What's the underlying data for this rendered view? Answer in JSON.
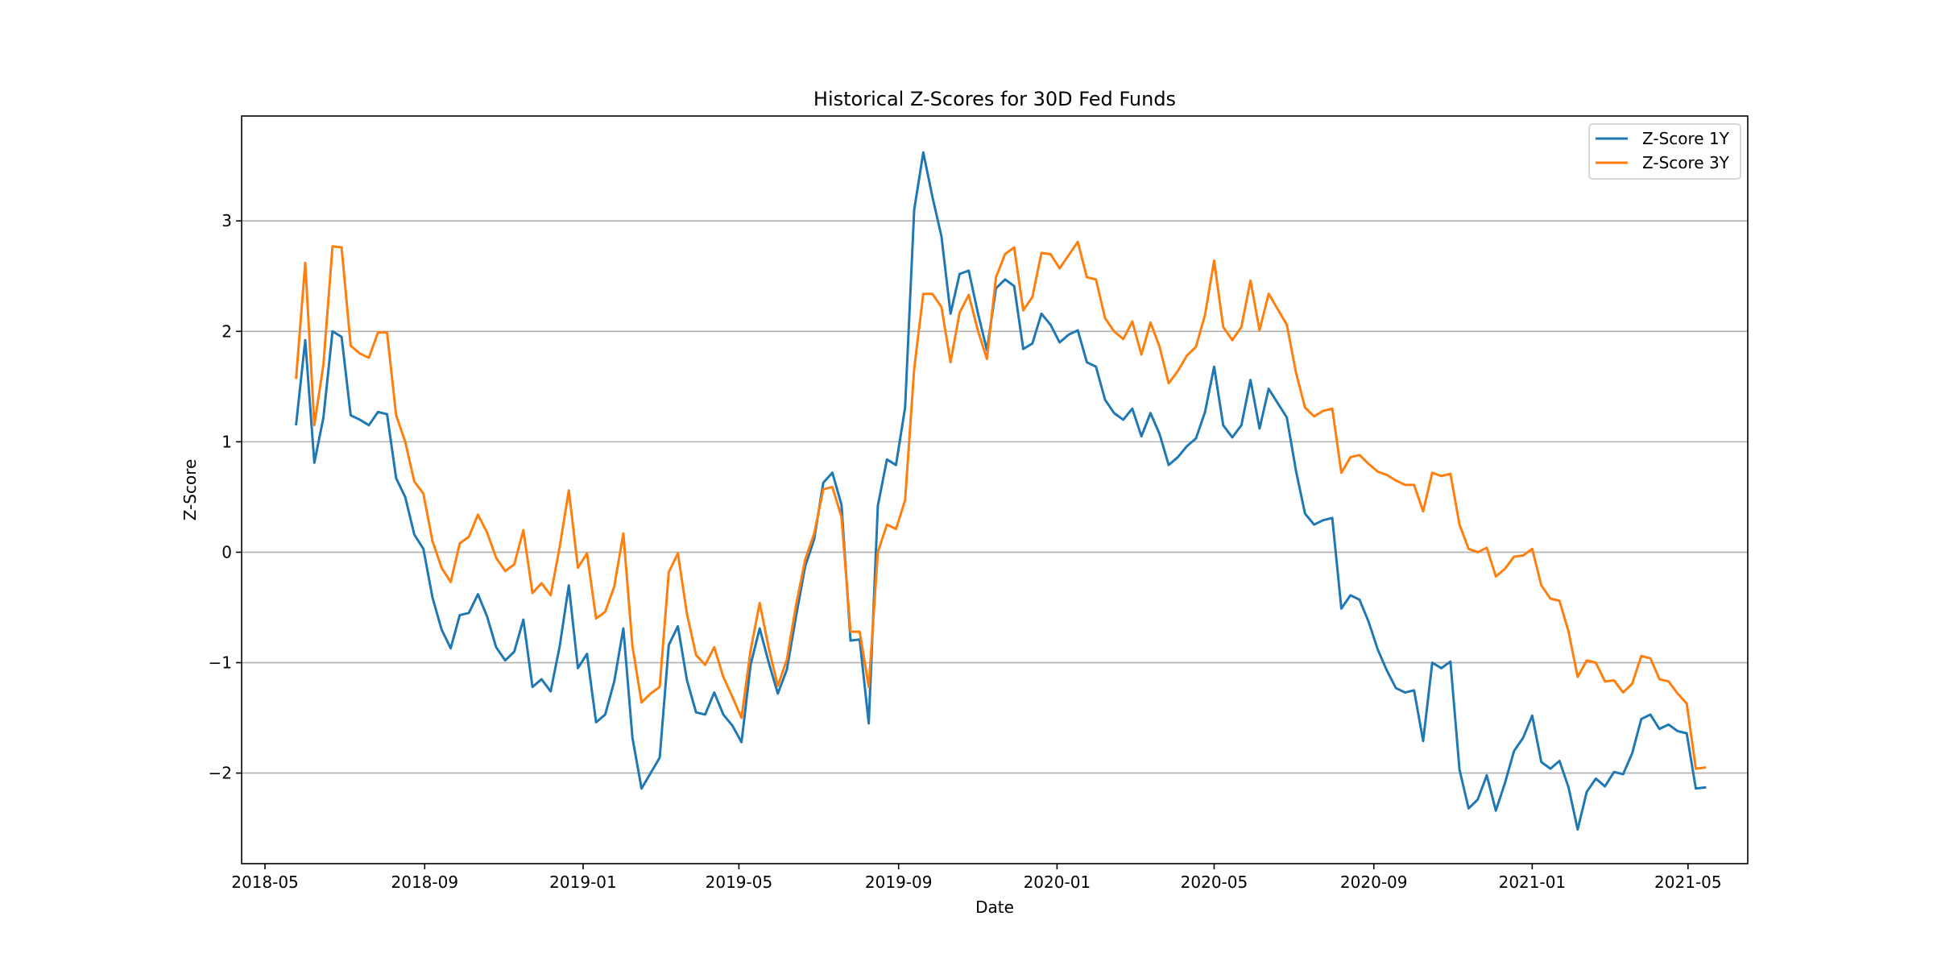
{
  "chart_data": {
    "type": "line",
    "title": "Historical Z-Scores for 30D Fed Funds",
    "xlabel": "Date",
    "ylabel": "Z-Score",
    "xlim": [
      "2018-04-13",
      "2021-06-16"
    ],
    "ylim": [
      -2.82,
      3.95
    ],
    "x_ticks": [
      "2018-05",
      "2018-09",
      "2019-01",
      "2019-05",
      "2019-09",
      "2020-01",
      "2020-05",
      "2020-09",
      "2021-01",
      "2021-05"
    ],
    "y_ticks": [
      -2,
      -1,
      0,
      1,
      2,
      3
    ],
    "y_tick_labels": [
      "−2",
      "−1",
      "0",
      "1",
      "2",
      "3"
    ],
    "grid": {
      "y": true,
      "x": false
    },
    "legend_position": "top-right",
    "x": [
      "2018-05-25",
      "2018-06-01",
      "2018-06-08",
      "2018-06-15",
      "2018-06-22",
      "2018-06-29",
      "2018-07-06",
      "2018-07-13",
      "2018-07-20",
      "2018-07-27",
      "2018-08-03",
      "2018-08-10",
      "2018-08-17",
      "2018-08-24",
      "2018-08-31",
      "2018-09-07",
      "2018-09-14",
      "2018-09-21",
      "2018-09-28",
      "2018-10-05",
      "2018-10-12",
      "2018-10-19",
      "2018-10-26",
      "2018-11-02",
      "2018-11-09",
      "2018-11-16",
      "2018-11-23",
      "2018-11-30",
      "2018-12-07",
      "2018-12-14",
      "2018-12-21",
      "2018-12-28",
      "2019-01-04",
      "2019-01-11",
      "2019-01-18",
      "2019-01-25",
      "2019-02-01",
      "2019-02-08",
      "2019-02-15",
      "2019-02-22",
      "2019-03-01",
      "2019-03-08",
      "2019-03-15",
      "2019-03-22",
      "2019-03-29",
      "2019-04-05",
      "2019-04-12",
      "2019-04-19",
      "2019-04-26",
      "2019-05-03",
      "2019-05-10",
      "2019-05-17",
      "2019-05-24",
      "2019-05-31",
      "2019-06-07",
      "2019-06-14",
      "2019-06-21",
      "2019-06-28",
      "2019-07-05",
      "2019-07-12",
      "2019-07-19",
      "2019-07-26",
      "2019-08-02",
      "2019-08-09",
      "2019-08-16",
      "2019-08-23",
      "2019-08-30",
      "2019-09-06",
      "2019-09-13",
      "2019-09-20",
      "2019-09-27",
      "2019-10-04",
      "2019-10-11",
      "2019-10-18",
      "2019-10-25",
      "2019-11-01",
      "2019-11-08",
      "2019-11-15",
      "2019-11-22",
      "2019-11-29",
      "2019-12-06",
      "2019-12-13",
      "2019-12-20",
      "2019-12-27",
      "2020-01-03",
      "2020-01-10",
      "2020-01-17",
      "2020-01-24",
      "2020-01-31",
      "2020-02-07",
      "2020-02-14",
      "2020-02-21",
      "2020-02-28",
      "2020-03-06",
      "2020-03-13",
      "2020-03-20",
      "2020-03-27",
      "2020-04-03",
      "2020-04-10",
      "2020-04-17",
      "2020-04-24",
      "2020-05-01",
      "2020-05-08",
      "2020-05-15",
      "2020-05-22",
      "2020-05-29",
      "2020-06-05",
      "2020-06-12",
      "2020-06-19",
      "2020-06-26",
      "2020-07-03",
      "2020-07-10",
      "2020-07-17",
      "2020-07-24",
      "2020-07-31",
      "2020-08-07",
      "2020-08-14",
      "2020-08-21",
      "2020-08-28",
      "2020-09-04",
      "2020-09-11",
      "2020-09-18",
      "2020-09-25",
      "2020-10-02",
      "2020-10-09",
      "2020-10-16",
      "2020-10-23",
      "2020-10-30",
      "2020-11-06",
      "2020-11-13",
      "2020-11-20",
      "2020-11-27",
      "2020-12-04",
      "2020-12-11",
      "2020-12-18",
      "2020-12-25",
      "2021-01-01",
      "2021-01-08",
      "2021-01-15",
      "2021-01-22",
      "2021-01-29",
      "2021-02-05",
      "2021-02-12",
      "2021-02-19",
      "2021-02-26",
      "2021-03-05",
      "2021-03-12",
      "2021-03-19",
      "2021-03-26",
      "2021-04-02",
      "2021-04-09",
      "2021-04-16",
      "2021-04-23",
      "2021-04-30",
      "2021-05-07",
      "2021-05-14"
    ],
    "series": [
      {
        "name": "Z-Score 1Y",
        "color": "#1f77b4",
        "values": [
          1.16,
          1.92,
          0.81,
          1.22,
          2.0,
          1.95,
          1.24,
          1.2,
          1.15,
          1.27,
          1.25,
          0.67,
          0.5,
          0.16,
          0.03,
          -0.41,
          -0.7,
          -0.87,
          -0.57,
          -0.55,
          -0.38,
          -0.58,
          -0.86,
          -0.98,
          -0.9,
          -0.61,
          -1.22,
          -1.15,
          -1.26,
          -0.85,
          -0.3,
          -1.05,
          -0.92,
          -1.54,
          -1.47,
          -1.17,
          -0.69,
          -1.68,
          -2.14,
          -2.0,
          -1.86,
          -0.84,
          -0.67,
          -1.16,
          -1.45,
          -1.47,
          -1.27,
          -1.47,
          -1.57,
          -1.72,
          -1.02,
          -0.69,
          -1.0,
          -1.28,
          -1.06,
          -0.58,
          -0.13,
          0.12,
          0.63,
          0.72,
          0.43,
          -0.8,
          -0.79,
          -1.55,
          0.42,
          0.84,
          0.79,
          1.31,
          3.1,
          3.62,
          3.22,
          2.86,
          2.16,
          2.52,
          2.55,
          2.17,
          1.83,
          2.39,
          2.47,
          2.41,
          1.84,
          1.89,
          2.16,
          2.06,
          1.9,
          1.97,
          2.01,
          1.72,
          1.68,
          1.38,
          1.26,
          1.2,
          1.3,
          1.05,
          1.26,
          1.07,
          0.79,
          0.86,
          0.96,
          1.03,
          1.27,
          1.68,
          1.15,
          1.04,
          1.15,
          1.56,
          1.12,
          1.48,
          1.35,
          1.22,
          0.74,
          0.35,
          0.25,
          0.29,
          0.31,
          -0.51,
          -0.39,
          -0.43,
          -0.63,
          -0.88,
          -1.07,
          -1.23,
          -1.27,
          -1.25,
          -1.71,
          -1.0,
          -1.05,
          -0.99,
          -1.97,
          -2.32,
          -2.24,
          -2.02,
          -2.34,
          -2.09,
          -1.8,
          -1.68,
          -1.48,
          -1.9,
          -1.96,
          -1.89,
          -2.13,
          -2.51,
          -2.17,
          -2.05,
          -2.12,
          -1.99,
          -2.01,
          -1.82,
          -1.51,
          -1.47,
          -1.6,
          -1.56,
          -1.62,
          -1.64,
          -2.14,
          -2.13
        ]
      },
      {
        "name": "Z-Score 3Y",
        "color": "#ff7f0e",
        "values": [
          1.58,
          2.62,
          1.15,
          1.7,
          2.77,
          2.76,
          1.87,
          1.8,
          1.76,
          1.99,
          1.99,
          1.24,
          1.0,
          0.64,
          0.53,
          0.1,
          -0.14,
          -0.27,
          0.08,
          0.14,
          0.34,
          0.18,
          -0.05,
          -0.17,
          -0.11,
          0.2,
          -0.37,
          -0.28,
          -0.39,
          0.05,
          0.56,
          -0.14,
          -0.01,
          -0.6,
          -0.54,
          -0.31,
          0.17,
          -0.85,
          -1.36,
          -1.28,
          -1.22,
          -0.18,
          -0.01,
          -0.56,
          -0.93,
          -1.02,
          -0.86,
          -1.13,
          -1.31,
          -1.5,
          -0.89,
          -0.46,
          -0.87,
          -1.21,
          -0.97,
          -0.48,
          -0.07,
          0.17,
          0.57,
          0.59,
          0.32,
          -0.72,
          -0.72,
          -1.22,
          0.0,
          0.25,
          0.21,
          0.47,
          1.66,
          2.34,
          2.34,
          2.22,
          1.72,
          2.17,
          2.33,
          2.01,
          1.75,
          2.49,
          2.7,
          2.76,
          2.19,
          2.31,
          2.71,
          2.7,
          2.57,
          2.69,
          2.81,
          2.49,
          2.47,
          2.12,
          2.0,
          1.93,
          2.09,
          1.79,
          2.08,
          1.86,
          1.53,
          1.64,
          1.78,
          1.86,
          2.15,
          2.64,
          2.04,
          1.92,
          2.04,
          2.46,
          2.01,
          2.34,
          2.2,
          2.06,
          1.63,
          1.31,
          1.23,
          1.28,
          1.3,
          0.72,
          0.86,
          0.88,
          0.8,
          0.73,
          0.7,
          0.65,
          0.61,
          0.61,
          0.37,
          0.72,
          0.69,
          0.71,
          0.25,
          0.03,
          0.0,
          0.04,
          -0.22,
          -0.15,
          -0.04,
          -0.03,
          0.03,
          -0.3,
          -0.42,
          -0.44,
          -0.72,
          -1.13,
          -0.98,
          -1.0,
          -1.17,
          -1.16,
          -1.27,
          -1.19,
          -0.94,
          -0.96,
          -1.15,
          -1.17,
          -1.28,
          -1.37,
          -1.96,
          -1.95
        ]
      }
    ]
  }
}
